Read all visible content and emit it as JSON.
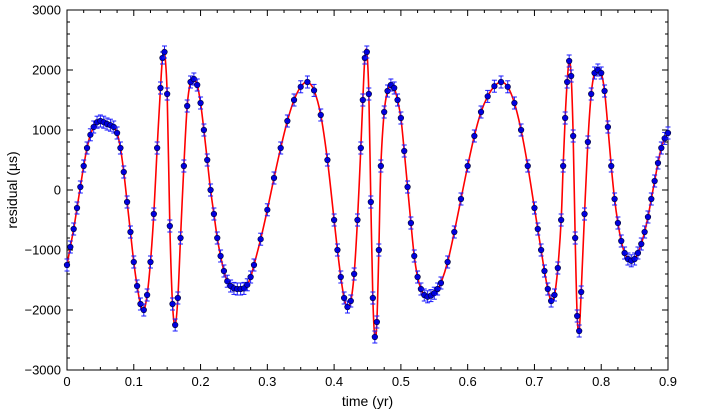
{
  "chart_data": {
    "type": "scatter",
    "title": "",
    "xlabel": "time (yr)",
    "ylabel": "residual (µs)",
    "xlim": [
      0,
      0.9
    ],
    "ylim": [
      -3000,
      3000
    ],
    "x_ticks": [
      0,
      0.1,
      0.2,
      0.3,
      0.4,
      0.5,
      0.6,
      0.7,
      0.8,
      0.9
    ],
    "y_ticks": [
      -3000,
      -2000,
      -1000,
      0,
      1000,
      2000,
      3000
    ],
    "x_tick_labels": [
      "0",
      "0.1",
      "0.2",
      "0.3",
      "0.4",
      "0.5",
      "0.6",
      "0.7",
      "0.8",
      "0.9"
    ],
    "y_tick_labels": [
      "−3000",
      "−2000",
      "−1000",
      "0",
      "1000",
      "2000",
      "3000"
    ],
    "grid": false,
    "legend": "none",
    "series": [
      {
        "kind": "errorbar",
        "marker_color": "#0000e0",
        "marker_edge": "#000033",
        "errorbar_color": "#1a1aff",
        "error_us": 100,
        "x": [
          0.0,
          0.005,
          0.01,
          0.015,
          0.02,
          0.025,
          0.03,
          0.035,
          0.04,
          0.045,
          0.05,
          0.055,
          0.06,
          0.065,
          0.07,
          0.075,
          0.08,
          0.085,
          0.09,
          0.095,
          0.1,
          0.105,
          0.11,
          0.115,
          0.12,
          0.125,
          0.13,
          0.135,
          0.14,
          0.143,
          0.146,
          0.15,
          0.154,
          0.158,
          0.162,
          0.166,
          0.17,
          0.175,
          0.18,
          0.185,
          0.19,
          0.195,
          0.2,
          0.205,
          0.21,
          0.215,
          0.22,
          0.225,
          0.23,
          0.235,
          0.24,
          0.245,
          0.25,
          0.255,
          0.26,
          0.265,
          0.27,
          0.275,
          0.28,
          0.29,
          0.3,
          0.31,
          0.32,
          0.33,
          0.34,
          0.35,
          0.36,
          0.37,
          0.38,
          0.39,
          0.4,
          0.405,
          0.41,
          0.415,
          0.42,
          0.425,
          0.43,
          0.435,
          0.44,
          0.443,
          0.446,
          0.449,
          0.452,
          0.455,
          0.458,
          0.461,
          0.464,
          0.467,
          0.47,
          0.475,
          0.48,
          0.485,
          0.49,
          0.495,
          0.5,
          0.505,
          0.51,
          0.515,
          0.52,
          0.525,
          0.53,
          0.535,
          0.54,
          0.545,
          0.55,
          0.555,
          0.56,
          0.57,
          0.58,
          0.59,
          0.6,
          0.61,
          0.62,
          0.63,
          0.64,
          0.65,
          0.66,
          0.67,
          0.68,
          0.69,
          0.7,
          0.705,
          0.71,
          0.715,
          0.72,
          0.725,
          0.73,
          0.735,
          0.74,
          0.743,
          0.746,
          0.749,
          0.752,
          0.755,
          0.758,
          0.761,
          0.764,
          0.767,
          0.77,
          0.775,
          0.78,
          0.785,
          0.79,
          0.795,
          0.8,
          0.805,
          0.81,
          0.815,
          0.82,
          0.825,
          0.83,
          0.835,
          0.84,
          0.845,
          0.85,
          0.855,
          0.86,
          0.865,
          0.87,
          0.875,
          0.88,
          0.885,
          0.89,
          0.895,
          0.9
        ],
        "y": [
          -1250,
          -950,
          -650,
          -300,
          50,
          400,
          700,
          920,
          1050,
          1130,
          1150,
          1130,
          1100,
          1080,
          1050,
          950,
          700,
          300,
          -200,
          -700,
          -1200,
          -1600,
          -1900,
          -2000,
          -1750,
          -1200,
          -400,
          700,
          1700,
          2200,
          2300,
          1600,
          -600,
          -1900,
          -2250,
          -1800,
          -800,
          400,
          1400,
          1800,
          1850,
          1750,
          1450,
          1000,
          500,
          0,
          -400,
          -800,
          -1100,
          -1350,
          -1520,
          -1600,
          -1640,
          -1650,
          -1650,
          -1640,
          -1580,
          -1450,
          -1250,
          -820,
          -330,
          200,
          700,
          1150,
          1500,
          1720,
          1800,
          1660,
          1250,
          500,
          -500,
          -1000,
          -1450,
          -1800,
          -1950,
          -1850,
          -1400,
          -500,
          700,
          1500,
          2200,
          2300,
          1600,
          -200,
          -1800,
          -2450,
          -2200,
          -1000,
          400,
          1300,
          1650,
          1750,
          1700,
          1500,
          1200,
          650,
          50,
          -550,
          -1100,
          -1450,
          -1650,
          -1750,
          -1780,
          -1760,
          -1720,
          -1650,
          -1550,
          -1200,
          -700,
          -150,
          400,
          900,
          1300,
          1560,
          1730,
          1800,
          1720,
          1450,
          1000,
          400,
          -300,
          -650,
          -1000,
          -1350,
          -1650,
          -1850,
          -1750,
          -1300,
          -500,
          400,
          1200,
          1800,
          2150,
          1900,
          900,
          -800,
          -2100,
          -2350,
          -1700,
          -400,
          800,
          1600,
          1950,
          2000,
          1950,
          1650,
          1050,
          400,
          -150,
          -550,
          -850,
          -1050,
          -1150,
          -1180,
          -1150,
          -1050,
          -900,
          -700,
          -450,
          -150,
          150,
          450,
          700,
          860,
          950
        ]
      },
      {
        "kind": "fit-curve",
        "color": "#ff0000",
        "x": [
          0.0,
          0.005,
          0.01,
          0.015,
          0.02,
          0.025,
          0.03,
          0.035,
          0.04,
          0.045,
          0.05,
          0.055,
          0.06,
          0.065,
          0.07,
          0.075,
          0.08,
          0.085,
          0.09,
          0.095,
          0.1,
          0.105,
          0.11,
          0.115,
          0.12,
          0.125,
          0.13,
          0.135,
          0.14,
          0.143,
          0.146,
          0.15,
          0.154,
          0.158,
          0.162,
          0.166,
          0.17,
          0.175,
          0.18,
          0.185,
          0.19,
          0.195,
          0.2,
          0.205,
          0.21,
          0.215,
          0.22,
          0.225,
          0.23,
          0.235,
          0.24,
          0.245,
          0.25,
          0.255,
          0.26,
          0.265,
          0.27,
          0.275,
          0.28,
          0.29,
          0.3,
          0.31,
          0.32,
          0.33,
          0.34,
          0.35,
          0.36,
          0.37,
          0.38,
          0.39,
          0.4,
          0.405,
          0.41,
          0.415,
          0.42,
          0.425,
          0.43,
          0.435,
          0.44,
          0.443,
          0.446,
          0.449,
          0.452,
          0.455,
          0.458,
          0.461,
          0.464,
          0.467,
          0.47,
          0.475,
          0.48,
          0.485,
          0.49,
          0.495,
          0.5,
          0.505,
          0.51,
          0.515,
          0.52,
          0.525,
          0.53,
          0.535,
          0.54,
          0.545,
          0.55,
          0.555,
          0.56,
          0.57,
          0.58,
          0.59,
          0.6,
          0.61,
          0.62,
          0.63,
          0.64,
          0.65,
          0.66,
          0.67,
          0.68,
          0.69,
          0.7,
          0.705,
          0.71,
          0.715,
          0.72,
          0.725,
          0.73,
          0.735,
          0.74,
          0.743,
          0.746,
          0.749,
          0.752,
          0.755,
          0.758,
          0.761,
          0.764,
          0.767,
          0.77,
          0.775,
          0.78,
          0.785,
          0.79,
          0.795,
          0.8,
          0.805,
          0.81,
          0.815,
          0.82,
          0.825,
          0.83,
          0.835,
          0.84,
          0.845,
          0.85,
          0.855,
          0.86,
          0.865,
          0.87,
          0.875,
          0.88,
          0.885,
          0.89,
          0.895,
          0.9
        ],
        "y": [
          -1250,
          -950,
          -650,
          -300,
          50,
          400,
          700,
          920,
          1050,
          1130,
          1150,
          1130,
          1100,
          1080,
          1050,
          950,
          700,
          300,
          -200,
          -700,
          -1200,
          -1600,
          -1900,
          -2000,
          -1750,
          -1200,
          -400,
          700,
          1700,
          2200,
          2300,
          1600,
          -600,
          -1900,
          -2250,
          -1800,
          -800,
          400,
          1400,
          1800,
          1850,
          1750,
          1450,
          1000,
          500,
          0,
          -400,
          -800,
          -1100,
          -1350,
          -1520,
          -1600,
          -1640,
          -1650,
          -1650,
          -1640,
          -1580,
          -1450,
          -1250,
          -820,
          -330,
          200,
          700,
          1150,
          1500,
          1720,
          1800,
          1660,
          1250,
          500,
          -500,
          -1000,
          -1450,
          -1800,
          -1950,
          -1850,
          -1400,
          -500,
          700,
          1500,
          2200,
          2300,
          1600,
          -200,
          -1800,
          -2450,
          -2200,
          -1000,
          400,
          1300,
          1650,
          1750,
          1700,
          1500,
          1200,
          650,
          50,
          -550,
          -1100,
          -1450,
          -1650,
          -1750,
          -1780,
          -1760,
          -1720,
          -1650,
          -1550,
          -1200,
          -700,
          -150,
          400,
          900,
          1300,
          1560,
          1730,
          1800,
          1720,
          1450,
          1000,
          400,
          -300,
          -650,
          -1000,
          -1350,
          -1650,
          -1850,
          -1750,
          -1300,
          -500,
          400,
          1200,
          1800,
          2150,
          1900,
          900,
          -800,
          -2100,
          -2350,
          -1700,
          -400,
          800,
          1600,
          1950,
          2000,
          1950,
          1650,
          1050,
          400,
          -150,
          -550,
          -850,
          -1050,
          -1150,
          -1180,
          -1150,
          -1050,
          -900,
          -700,
          -450,
          -150,
          150,
          450,
          700,
          860,
          950
        ]
      }
    ]
  }
}
